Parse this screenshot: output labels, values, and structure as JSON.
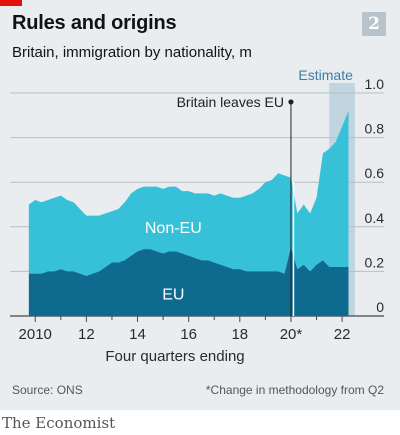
{
  "header": {
    "title": "Rules and origins",
    "subtitle": "Britain, immigration by nationality, m",
    "chart_number": "2"
  },
  "footer": {
    "source": "Source: ONS",
    "footnote": "*Change in methodology from Q2",
    "publisher": "The Economist"
  },
  "colors": {
    "non_eu": "#37c1d9",
    "eu": "#0f6a8f",
    "estimate_band": "#c0d5e0",
    "grid": "#b7c0c6",
    "background": "#e9edf0",
    "accent": "#e3120b"
  },
  "chart_data": {
    "type": "area",
    "stacked": true,
    "xlabel": "Four quarters ending",
    "x": [
      2009.75,
      2010.0,
      2010.25,
      2010.5,
      2010.75,
      2011.0,
      2011.25,
      2011.5,
      2011.75,
      2012.0,
      2012.25,
      2012.5,
      2012.75,
      2013.0,
      2013.25,
      2013.5,
      2013.75,
      2014.0,
      2014.25,
      2014.5,
      2014.75,
      2015.0,
      2015.25,
      2015.5,
      2015.75,
      2016.0,
      2016.25,
      2016.5,
      2016.75,
      2017.0,
      2017.25,
      2017.5,
      2017.75,
      2018.0,
      2018.25,
      2018.5,
      2018.75,
      2019.0,
      2019.25,
      2019.5,
      2019.75,
      2020.0,
      2020.25,
      2020.5,
      2020.75,
      2021.0,
      2021.25,
      2021.5,
      2021.75,
      2022.0,
      2022.25
    ],
    "series": [
      {
        "name": "EU",
        "values": [
          0.19,
          0.19,
          0.19,
          0.2,
          0.2,
          0.21,
          0.2,
          0.2,
          0.19,
          0.18,
          0.19,
          0.2,
          0.22,
          0.24,
          0.24,
          0.25,
          0.27,
          0.29,
          0.3,
          0.3,
          0.29,
          0.28,
          0.29,
          0.29,
          0.28,
          0.27,
          0.26,
          0.25,
          0.25,
          0.24,
          0.23,
          0.22,
          0.21,
          0.21,
          0.2,
          0.2,
          0.2,
          0.2,
          0.2,
          0.2,
          0.19,
          0.31,
          0.21,
          0.23,
          0.2,
          0.23,
          0.25,
          0.22,
          0.22,
          0.22,
          0.22
        ]
      },
      {
        "name": "Non-EU",
        "values": [
          0.31,
          0.33,
          0.32,
          0.32,
          0.33,
          0.33,
          0.32,
          0.31,
          0.29,
          0.27,
          0.26,
          0.25,
          0.24,
          0.23,
          0.24,
          0.26,
          0.28,
          0.28,
          0.28,
          0.28,
          0.29,
          0.29,
          0.29,
          0.29,
          0.28,
          0.29,
          0.29,
          0.3,
          0.3,
          0.3,
          0.32,
          0.32,
          0.32,
          0.32,
          0.34,
          0.35,
          0.37,
          0.4,
          0.41,
          0.44,
          0.44,
          0.31,
          0.25,
          0.27,
          0.26,
          0.3,
          0.48,
          0.53,
          0.56,
          0.63,
          0.7
        ]
      }
    ],
    "ylim": [
      0,
      1.0
    ],
    "yticks": [
      0,
      0.2,
      0.4,
      0.6,
      0.8,
      1.0
    ],
    "ytick_labels": [
      "0",
      "0.2",
      "0.4",
      "0.6",
      "0.8",
      "1.0"
    ],
    "xlim": [
      2009.6,
      2022.7
    ],
    "xticks": [
      2010,
      2012,
      2014,
      2016,
      2018,
      2020,
      2022
    ],
    "xtick_labels": [
      "2010",
      "12",
      "14",
      "16",
      "18",
      "20*",
      "22"
    ],
    "annotations": {
      "brexit": {
        "label": "Britain leaves EU",
        "x": 2020.0,
        "y": 0.96
      },
      "estimate": {
        "label": "Estimate",
        "x_start": 2021.5,
        "x_end": 2022.5
      },
      "area_labels": [
        {
          "series": "Non-EU",
          "label": "Non-EU",
          "x": 2015.4,
          "y": 0.4
        },
        {
          "series": "EU",
          "label": "EU",
          "x": 2015.4,
          "y": 0.1
        }
      ]
    },
    "grid": true,
    "yaxis_side": "right"
  }
}
